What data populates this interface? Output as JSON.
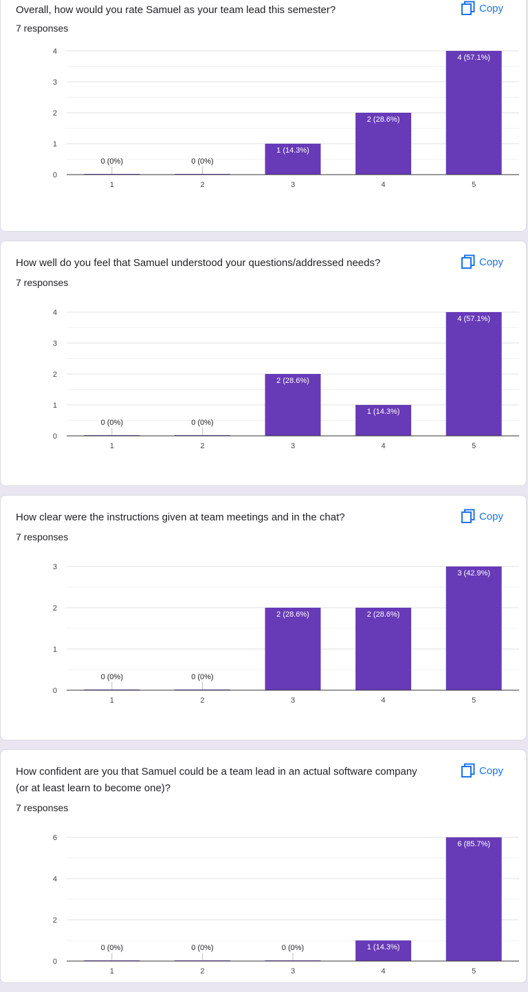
{
  "copy_label": "Copy",
  "colors": {
    "bar": "#673ab7",
    "label": "#202124",
    "link": "#1a73e8"
  },
  "questions": [
    {
      "title": "Overall, how would you rate Samuel as your team lead this semester?",
      "responses": "7 responses",
      "copy_label": "Copy"
    },
    {
      "title": "How well do you feel that Samuel understood your questions/addressed needs?",
      "responses": "7 responses",
      "copy_label": "Copy"
    },
    {
      "title": "How clear were the instructions given at team meetings and in the chat?",
      "responses": "7 responses",
      "copy_label": "Copy"
    },
    {
      "title": "How confident are you that Samuel could be a team lead in an actual software company (or at least learn to become one)?",
      "responses": "7 responses",
      "copy_label": "Copy"
    }
  ],
  "chart_data": [
    {
      "type": "bar",
      "categories": [
        "1",
        "2",
        "3",
        "4",
        "5"
      ],
      "values": [
        0,
        0,
        1,
        2,
        4
      ],
      "data_labels": [
        "0 (0%)",
        "0 (0%)",
        "1 (14.3%)",
        "2 (28.6%)",
        "4 (57.1%)"
      ],
      "yticks": [
        0,
        1,
        2,
        3,
        4
      ],
      "ylim": [
        0,
        4
      ],
      "grid": true
    },
    {
      "type": "bar",
      "categories": [
        "1",
        "2",
        "3",
        "4",
        "5"
      ],
      "values": [
        0,
        0,
        2,
        1,
        4
      ],
      "data_labels": [
        "0 (0%)",
        "0 (0%)",
        "2 (28.6%)",
        "1 (14.3%)",
        "4 (57.1%)"
      ],
      "yticks": [
        0,
        1,
        2,
        3,
        4
      ],
      "ylim": [
        0,
        4
      ],
      "grid": true
    },
    {
      "type": "bar",
      "categories": [
        "1",
        "2",
        "3",
        "4",
        "5"
      ],
      "values": [
        0,
        0,
        2,
        2,
        3
      ],
      "data_labels": [
        "0 (0%)",
        "0 (0%)",
        "2 (28.6%)",
        "2 (28.6%)",
        "3 (42.9%)"
      ],
      "yticks": [
        0,
        1,
        2,
        3
      ],
      "ylim": [
        0,
        3
      ],
      "grid": true
    },
    {
      "type": "bar",
      "categories": [
        "1",
        "2",
        "3",
        "4",
        "5"
      ],
      "values": [
        0,
        0,
        0,
        1,
        6
      ],
      "data_labels": [
        "0 (0%)",
        "0 (0%)",
        "0 (0%)",
        "1 (14.3%)",
        "6 (85.7%)"
      ],
      "yticks": [
        0,
        2,
        4,
        6
      ],
      "ylim": [
        0,
        6
      ],
      "grid": true
    }
  ]
}
